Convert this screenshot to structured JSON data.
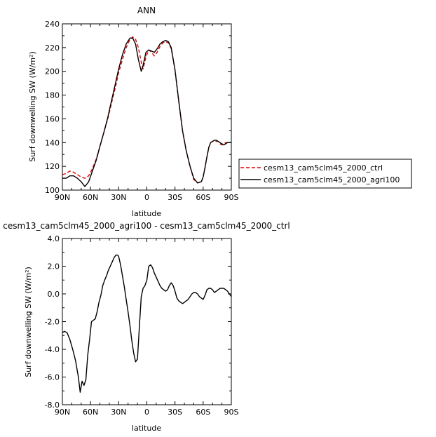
{
  "chart_data": [
    {
      "type": "line",
      "title": "ANN",
      "xlabel": "latitude",
      "ylabel": "Surf downwelling SW (W/m²)",
      "xlim": [
        90,
        -90
      ],
      "ylim": [
        100,
        240
      ],
      "xticks": [
        {
          "value": 90,
          "label": "90N"
        },
        {
          "value": 60,
          "label": "60N"
        },
        {
          "value": 30,
          "label": "30N"
        },
        {
          "value": 0,
          "label": "0"
        },
        {
          "value": -30,
          "label": "30S"
        },
        {
          "value": -60,
          "label": "60S"
        },
        {
          "value": -90,
          "label": "90S"
        }
      ],
      "yticks": [
        {
          "value": 100,
          "label": "100"
        },
        {
          "value": 120,
          "label": "120"
        },
        {
          "value": 140,
          "label": "140"
        },
        {
          "value": 160,
          "label": "160"
        },
        {
          "value": 180,
          "label": "180"
        },
        {
          "value": 200,
          "label": "200"
        },
        {
          "value": 220,
          "label": "220"
        },
        {
          "value": 240,
          "label": "240"
        }
      ],
      "legend_position": "right",
      "series": [
        {
          "name": "cesm13_cam5clm45_2000_ctrl",
          "color": "#e00000",
          "dash": "dashed",
          "x": [
            90,
            86,
            82,
            78,
            74,
            70,
            66,
            62,
            58,
            54,
            50,
            46,
            42,
            38,
            34,
            30,
            26,
            22,
            18,
            15,
            12,
            9,
            6,
            4,
            1,
            -2,
            -5,
            -8,
            -11,
            -14,
            -17,
            -20,
            -23,
            -26,
            -30,
            -34,
            -38,
            -42,
            -46,
            -50,
            -54,
            -58,
            -60,
            -62,
            -64,
            -66,
            -68,
            -70,
            -72,
            -74,
            -76,
            -78,
            -80,
            -82,
            -84,
            -86,
            -88,
            -90
          ],
          "y": [
            113,
            114,
            116,
            115,
            113,
            111,
            110,
            112,
            118,
            126,
            137,
            148,
            159,
            172,
            185,
            199,
            210,
            220,
            227,
            229,
            227,
            220,
            208,
            202,
            212,
            218,
            216,
            213,
            216,
            221,
            224,
            225,
            224,
            219,
            201,
            175,
            150,
            133,
            120,
            109,
            106,
            107,
            111,
            119,
            128,
            136,
            140,
            141,
            141,
            141,
            141,
            139,
            138,
            139,
            140,
            140,
            140,
            140
          ]
        },
        {
          "name": "cesm13_cam5clm45_2000_agri100",
          "color": "#000000",
          "dash": "solid",
          "x": [
            90,
            86,
            82,
            78,
            74,
            70,
            66,
            62,
            58,
            54,
            50,
            46,
            42,
            38,
            34,
            30,
            26,
            22,
            18,
            15,
            12,
            9,
            6,
            4,
            1,
            -2,
            -5,
            -8,
            -11,
            -14,
            -17,
            -20,
            -23,
            -26,
            -30,
            -34,
            -38,
            -42,
            -46,
            -50,
            -54,
            -58,
            -60,
            -62,
            -64,
            -66,
            -68,
            -70,
            -72,
            -74,
            -76,
            -78,
            -80,
            -82,
            -84,
            -86,
            -88,
            -90
          ],
          "y": [
            110,
            110,
            112,
            112,
            110,
            107,
            103,
            107,
            116,
            125,
            137,
            148,
            160,
            174,
            188,
            202,
            214,
            223,
            228,
            228,
            223,
            210,
            200,
            205,
            216,
            218,
            217,
            216,
            219,
            223,
            225,
            226,
            225,
            220,
            201,
            175,
            150,
            133,
            120,
            110,
            106,
            107,
            111,
            119,
            128,
            136,
            140,
            141,
            142,
            142,
            141,
            140,
            139,
            138,
            139,
            140,
            140,
            140
          ]
        }
      ]
    },
    {
      "type": "line",
      "title": "cesm13_cam5clm45_2000_agri100 - cesm13_cam5clm45_2000_ctrl",
      "xlabel": "latitude",
      "ylabel": "Surf downwelling SW (W/m²)",
      "xlim": [
        90,
        -90
      ],
      "ylim": [
        -8,
        4
      ],
      "xticks": [
        {
          "value": 90,
          "label": "90N"
        },
        {
          "value": 60,
          "label": "60N"
        },
        {
          "value": 30,
          "label": "30N"
        },
        {
          "value": 0,
          "label": "0"
        },
        {
          "value": -30,
          "label": "30S"
        },
        {
          "value": -60,
          "label": "60S"
        },
        {
          "value": -90,
          "label": "90S"
        }
      ],
      "yticks": [
        {
          "value": 4,
          "label": "4.0"
        },
        {
          "value": 2,
          "label": "2.0"
        },
        {
          "value": 0,
          "label": "0.0"
        },
        {
          "value": -2,
          "label": "-2.0"
        },
        {
          "value": -4,
          "label": "-4.0"
        },
        {
          "value": -6,
          "label": "-6.0"
        },
        {
          "value": -8,
          "label": "-8.0"
        }
      ],
      "series": [
        {
          "color": "#000000",
          "dash": "solid",
          "x": [
            90,
            88,
            85,
            82,
            79,
            76,
            73,
            71,
            69,
            67,
            65,
            63,
            61,
            59,
            57,
            55,
            53,
            51,
            49,
            47,
            45,
            43,
            41,
            39,
            37,
            35,
            33,
            31,
            30,
            28,
            26,
            24,
            22,
            20,
            18,
            16,
            14,
            12,
            10,
            8,
            6,
            4,
            2,
            0,
            -2,
            -4,
            -6,
            -8,
            -10,
            -12,
            -14,
            -16,
            -18,
            -20,
            -22,
            -24,
            -26,
            -28,
            -30,
            -32,
            -34,
            -36,
            -38,
            -40,
            -42,
            -44,
            -46,
            -48,
            -50,
            -52,
            -54,
            -56,
            -58,
            -60,
            -62,
            -64,
            -66,
            -68,
            -70,
            -72,
            -74,
            -76,
            -78,
            -80,
            -82,
            -84,
            -86,
            -88,
            -90
          ],
          "y": [
            -2.8,
            -2.7,
            -2.8,
            -3.3,
            -4.0,
            -4.8,
            -6.0,
            -7.1,
            -6.3,
            -6.6,
            -6.2,
            -4.4,
            -3.3,
            -2.0,
            -1.9,
            -1.8,
            -1.3,
            -0.6,
            -0.1,
            0.6,
            1.0,
            1.3,
            1.7,
            2.0,
            2.3,
            2.6,
            2.8,
            2.8,
            2.7,
            2.1,
            1.3,
            0.5,
            -0.4,
            -1.3,
            -2.3,
            -3.4,
            -4.3,
            -4.9,
            -4.7,
            -2.4,
            -0.2,
            0.4,
            0.6,
            1.0,
            2.0,
            2.1,
            1.9,
            1.5,
            1.2,
            0.9,
            0.6,
            0.4,
            0.3,
            0.2,
            0.3,
            0.6,
            0.8,
            0.6,
            0.2,
            -0.3,
            -0.5,
            -0.6,
            -0.7,
            -0.6,
            -0.5,
            -0.4,
            -0.2,
            0.0,
            0.1,
            0.1,
            0.0,
            -0.2,
            -0.3,
            -0.4,
            -0.1,
            0.3,
            0.4,
            0.4,
            0.3,
            0.1,
            0.2,
            0.3,
            0.4,
            0.4,
            0.4,
            0.3,
            0.2,
            0.0,
            -0.2
          ]
        }
      ]
    }
  ]
}
